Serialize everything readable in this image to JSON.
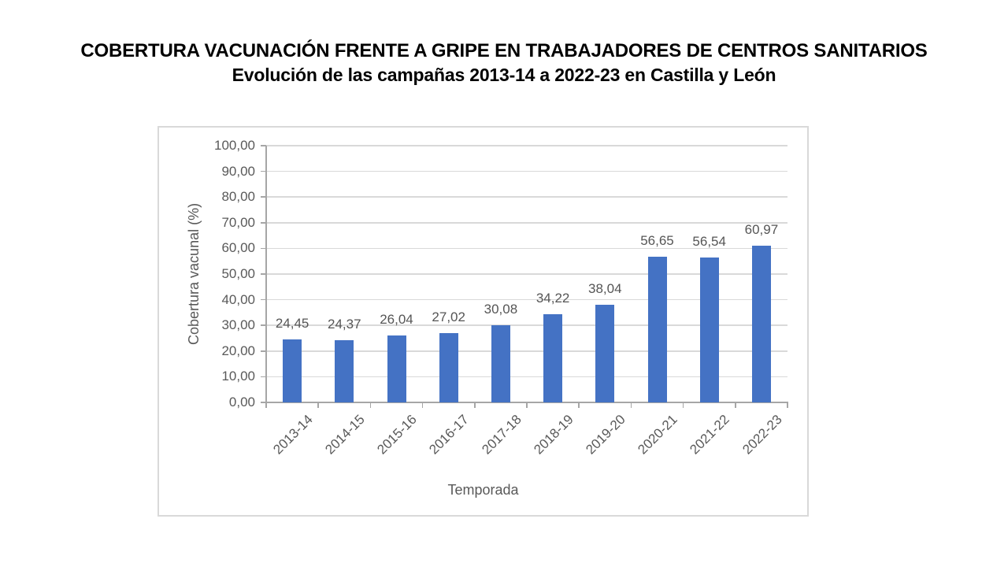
{
  "slide": {
    "background": "#FFFFFF"
  },
  "title": {
    "line1": "COBERTURA VACUNACIÓN FRENTE A GRIPE EN TRABAJADORES DE CENTROS SANITARIOS",
    "line2": "Evolución de las campañas 2013-14 a 2022-23 en Castilla y León"
  },
  "chart_data": {
    "type": "bar",
    "categories": [
      "2013-14",
      "2014-15",
      "2015-16",
      "2016-17",
      "2017-18",
      "2018-19",
      "2019-20",
      "2020-21",
      "2021-22",
      "2022-23"
    ],
    "values": [
      24.45,
      24.37,
      26.04,
      27.02,
      30.08,
      34.22,
      38.04,
      56.65,
      56.54,
      60.97
    ],
    "value_labels": [
      "24,45",
      "24,37",
      "26,04",
      "27,02",
      "30,08",
      "34,22",
      "38,04",
      "56,65",
      "56,54",
      "60,97"
    ],
    "xlabel": "Temporada",
    "ylabel": "Cobertura vacunal (%)",
    "ylim": [
      0,
      100
    ],
    "ytick_step": 10,
    "ytick_labels": [
      "0,00",
      "10,00",
      "20,00",
      "30,00",
      "40,00",
      "50,00",
      "60,00",
      "70,00",
      "80,00",
      "90,00",
      "100,00"
    ],
    "grid": true,
    "legend": "none",
    "colors": {
      "bar": "#4472C4",
      "gridline": "#D9D9D9",
      "axis_line": "#A6A6A6",
      "tick_label": "#595959",
      "data_label": "#555555",
      "axis_title": "#595959",
      "frame_border": "#D9D9D9",
      "title_text": "#000000"
    }
  }
}
